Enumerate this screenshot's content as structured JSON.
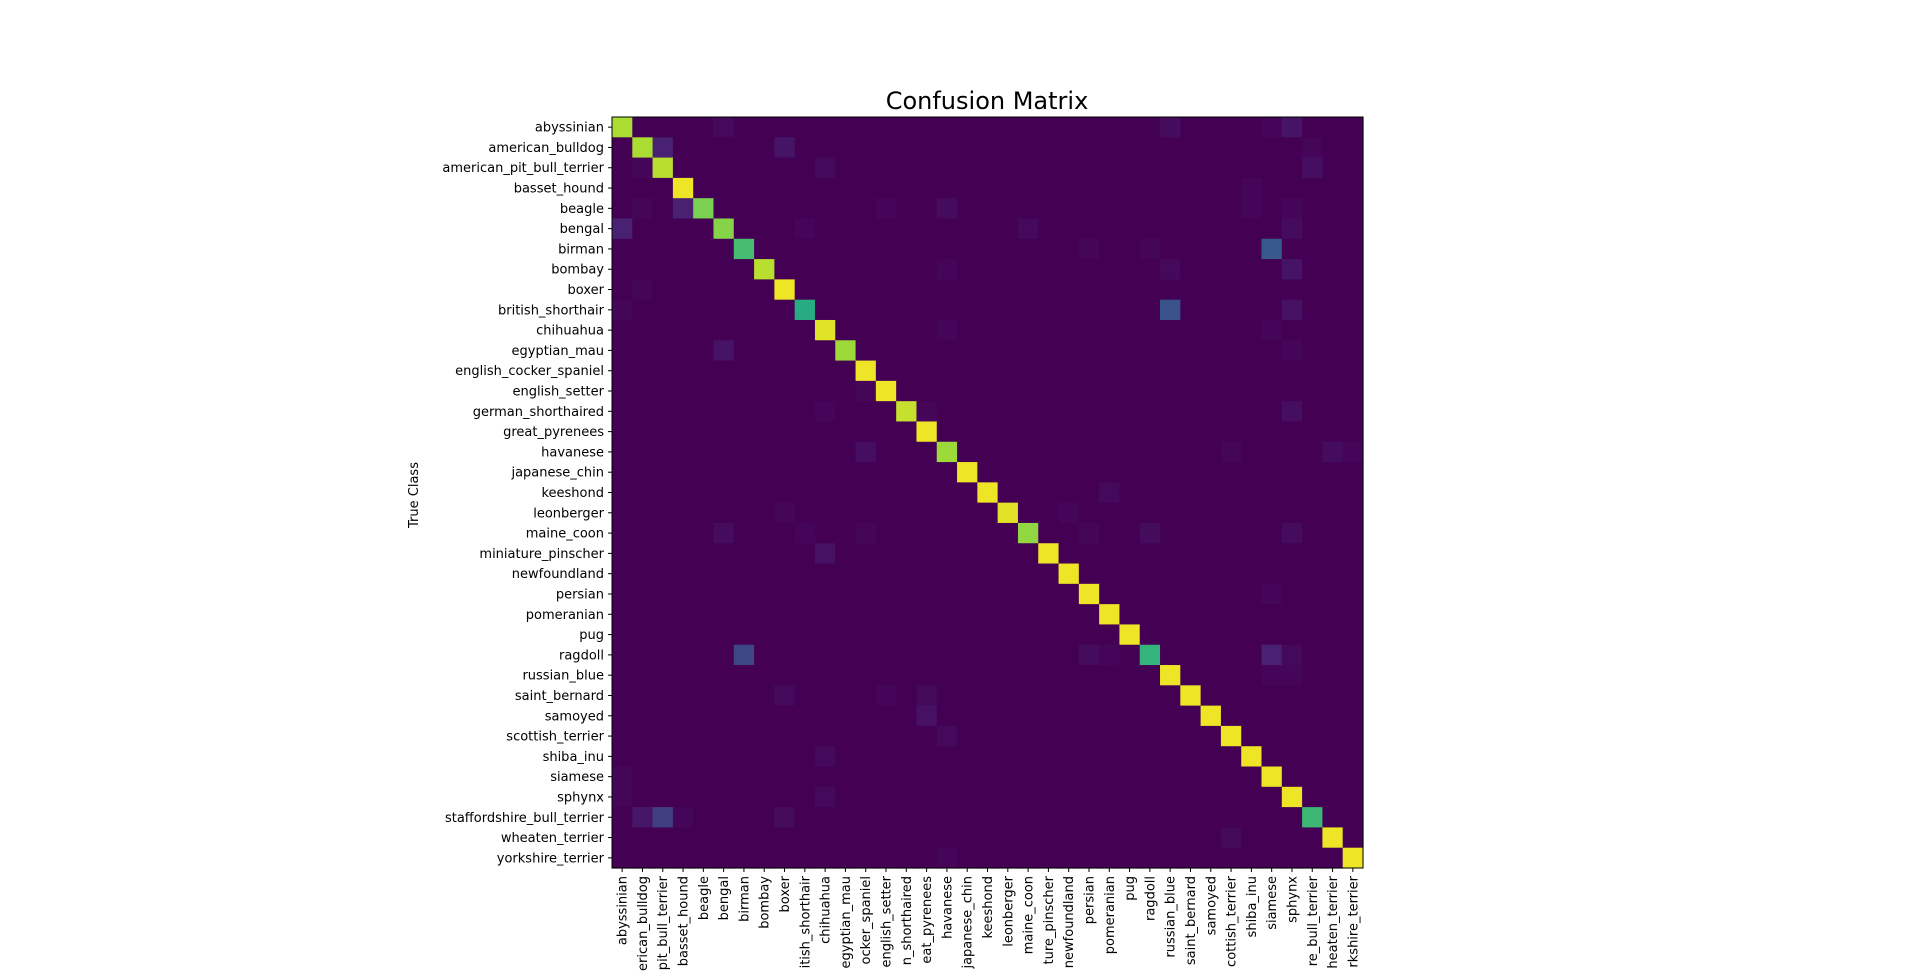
{
  "chart_data": {
    "type": "heatmap",
    "title": "Confusion Matrix",
    "ylabel": "True Class",
    "xlabel": "",
    "colormap": "viridis",
    "value_range": [
      0,
      1
    ],
    "classes": [
      "abyssinian",
      "american_bulldog",
      "american_pit_bull_terrier",
      "basset_hound",
      "beagle",
      "bengal",
      "birman",
      "bombay",
      "boxer",
      "british_shorthair",
      "chihuahua",
      "egyptian_mau",
      "english_cocker_spaniel",
      "english_setter",
      "german_shorthaired",
      "great_pyrenees",
      "havanese",
      "japanese_chin",
      "keeshond",
      "leonberger",
      "maine_coon",
      "miniature_pinscher",
      "newfoundland",
      "persian",
      "pomeranian",
      "pug",
      "ragdoll",
      "russian_blue",
      "saint_bernard",
      "samoyed",
      "scottish_terrier",
      "shiba_inu",
      "siamese",
      "sphynx",
      "staffordshire_bull_terrier",
      "wheaten_terrier",
      "yorkshire_terrier"
    ],
    "x_tick_labels_visible": [
      "abyssinian",
      "erican_bulldog",
      "pit_bull_terrier",
      "basset_hound",
      "beagle",
      "bengal",
      "birman",
      "bombay",
      "boxer",
      "itish_shorthair",
      "chihuahua",
      "egyptian_mau",
      "ocker_spaniel",
      "english_setter",
      "n_shorthaired",
      "eat_pyrenees",
      "havanese",
      "japanese_chin",
      "keeshond",
      "leonberger",
      "maine_coon",
      "ture_pinscher",
      "newfoundland",
      "persian",
      "pomeranian",
      "pug",
      "ragdoll",
      "russian_blue",
      "saint_bernard",
      "samoyed",
      "cottish_terrier",
      "shiba_inu",
      "siamese",
      "sphynx",
      "re_bull_terrier",
      "heaten_terrier",
      "rkshire_terrier"
    ],
    "diagonal": [
      0.88,
      0.88,
      0.9,
      0.98,
      0.8,
      0.82,
      0.7,
      0.9,
      0.98,
      0.62,
      0.96,
      0.86,
      0.98,
      0.98,
      0.92,
      0.98,
      0.86,
      0.98,
      0.98,
      0.96,
      0.84,
      0.98,
      0.98,
      0.98,
      0.98,
      0.98,
      0.66,
      0.98,
      0.98,
      0.98,
      0.98,
      0.98,
      0.98,
      0.98,
      0.68,
      0.98,
      0.98
    ],
    "off_diagonal": [
      {
        "row": "abyssinian",
        "col": "bengal",
        "value": 0.03
      },
      {
        "row": "abyssinian",
        "col": "russian_blue",
        "value": 0.04
      },
      {
        "row": "abyssinian",
        "col": "siamese",
        "value": 0.02
      },
      {
        "row": "abyssinian",
        "col": "sphynx",
        "value": 0.07
      },
      {
        "row": "american_bulldog",
        "col": "american_pit_bull_terrier",
        "value": 0.12
      },
      {
        "row": "american_bulldog",
        "col": "boxer",
        "value": 0.07
      },
      {
        "row": "american_bulldog",
        "col": "staffordshire_bull_terrier",
        "value": 0.02
      },
      {
        "row": "american_pit_bull_terrier",
        "col": "american_bulldog",
        "value": 0.02
      },
      {
        "row": "american_pit_bull_terrier",
        "col": "chihuahua",
        "value": 0.03
      },
      {
        "row": "american_pit_bull_terrier",
        "col": "staffordshire_bull_terrier",
        "value": 0.05
      },
      {
        "row": "beagle",
        "col": "basset_hound",
        "value": 0.12
      },
      {
        "row": "beagle",
        "col": "american_bulldog",
        "value": 0.02
      },
      {
        "row": "beagle",
        "col": "english_setter",
        "value": 0.02
      },
      {
        "row": "beagle",
        "col": "havanese",
        "value": 0.04
      },
      {
        "row": "beagle",
        "col": "shiba_inu",
        "value": 0.02
      },
      {
        "row": "beagle",
        "col": "sphynx",
        "value": 0.02
      },
      {
        "row": "basset_hound",
        "col": "shiba_inu",
        "value": 0.02
      },
      {
        "row": "bengal",
        "col": "abyssinian",
        "value": 0.12
      },
      {
        "row": "bengal",
        "col": "british_shorthair",
        "value": 0.02
      },
      {
        "row": "bengal",
        "col": "maine_coon",
        "value": 0.03
      },
      {
        "row": "bengal",
        "col": "sphynx",
        "value": 0.04
      },
      {
        "row": "birman",
        "col": "siamese",
        "value": 0.28
      },
      {
        "row": "birman",
        "col": "persian",
        "value": 0.02
      },
      {
        "row": "birman",
        "col": "ragdoll",
        "value": 0.02
      },
      {
        "row": "bombay",
        "col": "havanese",
        "value": 0.02
      },
      {
        "row": "bombay",
        "col": "russian_blue",
        "value": 0.03
      },
      {
        "row": "bombay",
        "col": "sphynx",
        "value": 0.07
      },
      {
        "row": "boxer",
        "col": "american_bulldog",
        "value": 0.02
      },
      {
        "row": "british_shorthair",
        "col": "russian_blue",
        "value": 0.26
      },
      {
        "row": "british_shorthair",
        "col": "sphynx",
        "value": 0.06
      },
      {
        "row": "british_shorthair",
        "col": "abyssinian",
        "value": 0.02
      },
      {
        "row": "chihuahua",
        "col": "havanese",
        "value": 0.02
      },
      {
        "row": "chihuahua",
        "col": "siamese",
        "value": 0.02
      },
      {
        "row": "egyptian_mau",
        "col": "bengal",
        "value": 0.07
      },
      {
        "row": "egyptian_mau",
        "col": "sphynx",
        "value": 0.02
      },
      {
        "row": "english_setter",
        "col": "english_cocker_spaniel",
        "value": 0.02
      },
      {
        "row": "german_shorthaired",
        "col": "chihuahua",
        "value": 0.02
      },
      {
        "row": "german_shorthaired",
        "col": "sphynx",
        "value": 0.05
      },
      {
        "row": "german_shorthaired",
        "col": "great_pyrenees",
        "value": 0.02
      },
      {
        "row": "havanese",
        "col": "english_cocker_spaniel",
        "value": 0.05
      },
      {
        "row": "havanese",
        "col": "scottish_terrier",
        "value": 0.02
      },
      {
        "row": "havanese",
        "col": "wheaten_terrier",
        "value": 0.04
      },
      {
        "row": "havanese",
        "col": "yorkshire_terrier",
        "value": 0.02
      },
      {
        "row": "keeshond",
        "col": "pomeranian",
        "value": 0.03
      },
      {
        "row": "leonberger",
        "col": "boxer",
        "value": 0.02
      },
      {
        "row": "leonberger",
        "col": "newfoundland",
        "value": 0.02
      },
      {
        "row": "maine_coon",
        "col": "bengal",
        "value": 0.04
      },
      {
        "row": "maine_coon",
        "col": "british_shorthair",
        "value": 0.02
      },
      {
        "row": "maine_coon",
        "col": "english_cocker_spaniel",
        "value": 0.02
      },
      {
        "row": "maine_coon",
        "col": "persian",
        "value": 0.02
      },
      {
        "row": "maine_coon",
        "col": "ragdoll",
        "value": 0.04
      },
      {
        "row": "maine_coon",
        "col": "sphynx",
        "value": 0.04
      },
      {
        "row": "miniature_pinscher",
        "col": "chihuahua",
        "value": 0.06
      },
      {
        "row": "persian",
        "col": "siamese",
        "value": 0.02
      },
      {
        "row": "ragdoll",
        "col": "birman",
        "value": 0.22
      },
      {
        "row": "ragdoll",
        "col": "siamese",
        "value": 0.12
      },
      {
        "row": "ragdoll",
        "col": "persian",
        "value": 0.04
      },
      {
        "row": "ragdoll",
        "col": "pomeranian",
        "value": 0.02
      },
      {
        "row": "ragdoll",
        "col": "sphynx",
        "value": 0.03
      },
      {
        "row": "russian_blue",
        "col": "siamese",
        "value": 0.02
      },
      {
        "row": "russian_blue",
        "col": "sphynx",
        "value": 0.02
      },
      {
        "row": "saint_bernard",
        "col": "boxer",
        "value": 0.03
      },
      {
        "row": "saint_bernard",
        "col": "english_setter",
        "value": 0.02
      },
      {
        "row": "saint_bernard",
        "col": "great_pyrenees",
        "value": 0.03
      },
      {
        "row": "samoyed",
        "col": "great_pyrenees",
        "value": 0.06
      },
      {
        "row": "scottish_terrier",
        "col": "havanese",
        "value": 0.03
      },
      {
        "row": "shiba_inu",
        "col": "chihuahua",
        "value": 0.03
      },
      {
        "row": "siamese",
        "col": "abyssinian",
        "value": 0.02
      },
      {
        "row": "sphynx",
        "col": "chihuahua",
        "value": 0.03
      },
      {
        "row": "sphynx",
        "col": "abyssinian",
        "value": 0.02
      },
      {
        "row": "staffordshire_bull_terrier",
        "col": "american_pit_bull_terrier",
        "value": 0.2
      },
      {
        "row": "staffordshire_bull_terrier",
        "col": "american_bulldog",
        "value": 0.08
      },
      {
        "row": "staffordshire_bull_terrier",
        "col": "basset_hound",
        "value": 0.02
      },
      {
        "row": "staffordshire_bull_terrier",
        "col": "boxer",
        "value": 0.04
      },
      {
        "row": "wheaten_terrier",
        "col": "scottish_terrier",
        "value": 0.03
      },
      {
        "row": "yorkshire_terrier",
        "col": "havanese",
        "value": 0.02
      }
    ]
  }
}
